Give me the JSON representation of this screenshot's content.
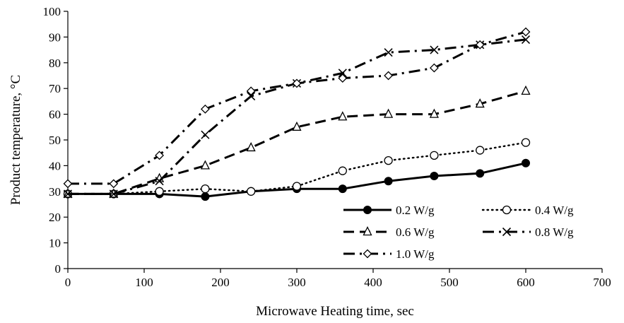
{
  "chart_data": {
    "type": "line",
    "xlabel": "Microwave Heating time, sec",
    "ylabel": "Product temperature, °C",
    "xlim": [
      0,
      700
    ],
    "ylim": [
      0,
      100
    ],
    "xticks": [
      0,
      100,
      200,
      300,
      400,
      500,
      600,
      700
    ],
    "yticks": [
      0,
      10,
      20,
      30,
      40,
      50,
      60,
      70,
      80,
      90,
      100
    ],
    "grid": false,
    "legend_position": "bottom-right",
    "series": [
      {
        "name": "0.2 W/g",
        "marker": "filled-circle",
        "line_style": "solid",
        "color": "#000000",
        "x": [
          0,
          60,
          120,
          180,
          240,
          300,
          360,
          420,
          480,
          540,
          600
        ],
        "y": [
          29,
          29,
          29,
          28,
          30,
          31,
          31,
          34,
          36,
          37,
          41
        ]
      },
      {
        "name": "0.4 W/g",
        "marker": "open-circle",
        "line_style": "dotted",
        "color": "#000000",
        "x": [
          0,
          60,
          120,
          180,
          240,
          300,
          360,
          420,
          480,
          540,
          600
        ],
        "y": [
          29,
          29,
          30,
          31,
          30,
          32,
          38,
          42,
          44,
          46,
          49
        ]
      },
      {
        "name": "0.6 W/g",
        "marker": "open-triangle",
        "line_style": "dashed",
        "color": "#000000",
        "x": [
          0,
          60,
          120,
          180,
          240,
          300,
          360,
          420,
          480,
          540,
          600
        ],
        "y": [
          29,
          29,
          35,
          40,
          47,
          55,
          59,
          60,
          60,
          64,
          69
        ]
      },
      {
        "name": "0.8 W/g",
        "marker": "x",
        "line_style": "dash-dot",
        "color": "#000000",
        "x": [
          0,
          60,
          120,
          180,
          240,
          300,
          360,
          420,
          480,
          540,
          600
        ],
        "y": [
          29,
          29,
          34,
          52,
          67,
          72,
          76,
          84,
          85,
          87,
          89
        ]
      },
      {
        "name": "1.0 W/g",
        "marker": "open-diamond",
        "line_style": "dash-dot",
        "color": "#000000",
        "x": [
          0,
          60,
          120,
          180,
          240,
          300,
          360,
          420,
          480,
          540,
          600
        ],
        "y": [
          33,
          33,
          44,
          62,
          69,
          72,
          74,
          75,
          78,
          87,
          92
        ]
      }
    ]
  }
}
